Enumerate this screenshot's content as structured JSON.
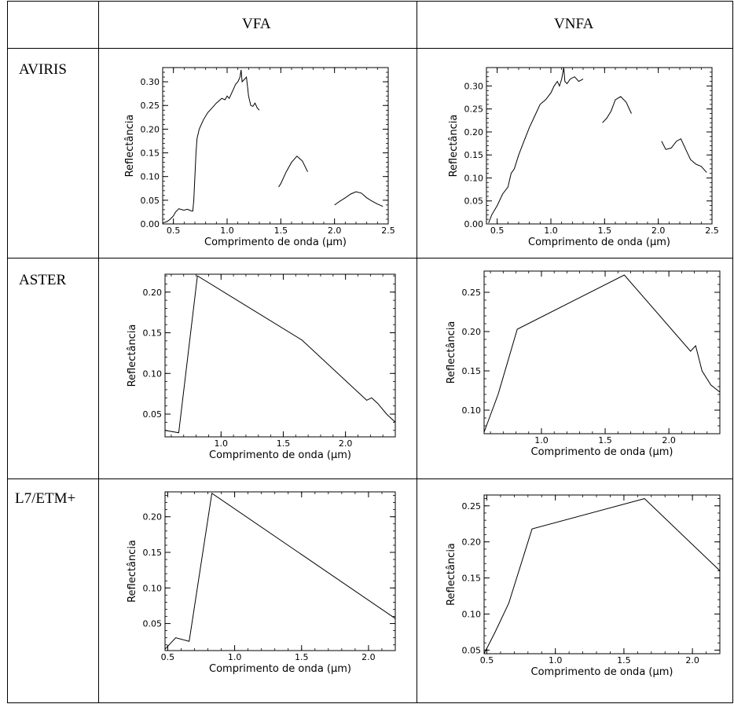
{
  "table": {
    "headers": [
      "",
      "VFA",
      "VNFA"
    ],
    "rows": [
      "AVIRIS",
      "ASTER",
      "L7/ETM+"
    ]
  },
  "chart_data": [
    {
      "id": "aviris-vfa",
      "type": "line",
      "row": "AVIRIS",
      "column": "VFA",
      "xlabel": "Comprimento de onda (µm)",
      "ylabel": "Reflectância",
      "xlim": [
        0.4,
        2.5
      ],
      "ylim": [
        0.0,
        0.33
      ],
      "xticks": [
        0.5,
        1.0,
        1.5,
        2.0,
        2.5
      ],
      "xtick_labels": [
        "0.5",
        "1.0",
        "1.5",
        "2.0",
        "2.5"
      ],
      "yticks": [
        0.0,
        0.05,
        0.1,
        0.15,
        0.2,
        0.25,
        0.3
      ],
      "ytick_labels": [
        "0.00",
        "0.05",
        "0.10",
        "0.15",
        "0.20",
        "0.25",
        "0.30"
      ],
      "segments": [
        [
          [
            0.4,
            0.002
          ],
          [
            0.44,
            0.005
          ],
          [
            0.47,
            0.01
          ],
          [
            0.5,
            0.017
          ],
          [
            0.52,
            0.025
          ],
          [
            0.55,
            0.032
          ],
          [
            0.58,
            0.03
          ],
          [
            0.6,
            0.029
          ],
          [
            0.63,
            0.031
          ],
          [
            0.66,
            0.028
          ],
          [
            0.68,
            0.027
          ],
          [
            0.69,
            0.05
          ],
          [
            0.7,
            0.1
          ],
          [
            0.71,
            0.15
          ],
          [
            0.72,
            0.18
          ],
          [
            0.74,
            0.2
          ],
          [
            0.78,
            0.22
          ],
          [
            0.82,
            0.235
          ],
          [
            0.86,
            0.245
          ],
          [
            0.9,
            0.255
          ],
          [
            0.95,
            0.265
          ],
          [
            0.98,
            0.262
          ],
          [
            1.0,
            0.27
          ],
          [
            1.02,
            0.265
          ],
          [
            1.05,
            0.28
          ],
          [
            1.08,
            0.295
          ],
          [
            1.1,
            0.3
          ],
          [
            1.12,
            0.31
          ],
          [
            1.13,
            0.325
          ],
          [
            1.14,
            0.3
          ],
          [
            1.16,
            0.305
          ],
          [
            1.18,
            0.31
          ],
          [
            1.2,
            0.27
          ],
          [
            1.22,
            0.25
          ],
          [
            1.24,
            0.248
          ],
          [
            1.26,
            0.255
          ],
          [
            1.28,
            0.245
          ],
          [
            1.3,
            0.24
          ]
        ],
        [
          [
            1.48,
            0.078
          ],
          [
            1.5,
            0.085
          ],
          [
            1.55,
            0.11
          ],
          [
            1.6,
            0.13
          ],
          [
            1.65,
            0.143
          ],
          [
            1.7,
            0.133
          ],
          [
            1.75,
            0.11
          ]
        ],
        [
          [
            2.0,
            0.04
          ],
          [
            2.05,
            0.048
          ],
          [
            2.1,
            0.055
          ],
          [
            2.15,
            0.063
          ],
          [
            2.2,
            0.068
          ],
          [
            2.25,
            0.065
          ],
          [
            2.3,
            0.055
          ],
          [
            2.35,
            0.048
          ],
          [
            2.4,
            0.042
          ],
          [
            2.45,
            0.037
          ]
        ]
      ]
    },
    {
      "id": "aviris-vnfa",
      "type": "line",
      "row": "AVIRIS",
      "column": "VNFA",
      "xlabel": "Comprimento de onda (µm)",
      "ylabel": "Reflectância",
      "xlim": [
        0.4,
        2.5
      ],
      "ylim": [
        0.0,
        0.34
      ],
      "xticks": [
        0.5,
        1.0,
        1.5,
        2.0,
        2.5
      ],
      "xtick_labels": [
        "0.5",
        "1.0",
        "1.5",
        "2.0",
        "2.5"
      ],
      "yticks": [
        0.0,
        0.05,
        0.1,
        0.15,
        0.2,
        0.25,
        0.3
      ],
      "ytick_labels": [
        "0.00",
        "0.05",
        "0.10",
        "0.15",
        "0.20",
        "0.25",
        "0.30"
      ],
      "segments": [
        [
          [
            0.42,
            0.002
          ],
          [
            0.45,
            0.02
          ],
          [
            0.5,
            0.04
          ],
          [
            0.55,
            0.065
          ],
          [
            0.6,
            0.08
          ],
          [
            0.63,
            0.11
          ],
          [
            0.66,
            0.12
          ],
          [
            0.7,
            0.15
          ],
          [
            0.75,
            0.18
          ],
          [
            0.8,
            0.21
          ],
          [
            0.85,
            0.235
          ],
          [
            0.9,
            0.26
          ],
          [
            0.95,
            0.27
          ],
          [
            1.0,
            0.285
          ],
          [
            1.03,
            0.3
          ],
          [
            1.06,
            0.31
          ],
          [
            1.08,
            0.3
          ],
          [
            1.1,
            0.315
          ],
          [
            1.12,
            0.34
          ],
          [
            1.13,
            0.31
          ],
          [
            1.15,
            0.305
          ],
          [
            1.18,
            0.315
          ],
          [
            1.22,
            0.32
          ],
          [
            1.26,
            0.31
          ],
          [
            1.3,
            0.315
          ]
        ],
        [
          [
            1.48,
            0.22
          ],
          [
            1.52,
            0.23
          ],
          [
            1.56,
            0.245
          ],
          [
            1.6,
            0.27
          ],
          [
            1.65,
            0.277
          ],
          [
            1.7,
            0.265
          ],
          [
            1.75,
            0.24
          ]
        ],
        [
          [
            2.03,
            0.18
          ],
          [
            2.07,
            0.162
          ],
          [
            2.12,
            0.165
          ],
          [
            2.17,
            0.18
          ],
          [
            2.21,
            0.185
          ],
          [
            2.25,
            0.165
          ],
          [
            2.3,
            0.14
          ],
          [
            2.35,
            0.13
          ],
          [
            2.4,
            0.125
          ],
          [
            2.45,
            0.112
          ]
        ]
      ]
    },
    {
      "id": "aster-vfa",
      "type": "line",
      "row": "ASTER",
      "column": "VFA",
      "xlabel": "Comprimento de onda (µm)",
      "ylabel": "Reflectância",
      "xlim": [
        0.55,
        2.4
      ],
      "ylim": [
        0.022,
        0.222
      ],
      "xticks": [
        1.0,
        1.5,
        2.0
      ],
      "xtick_labels": [
        "1.0",
        "1.5",
        "2.0"
      ],
      "yticks": [
        0.05,
        0.1,
        0.15,
        0.2
      ],
      "ytick_labels": [
        "0.05",
        "0.10",
        "0.15",
        "0.20"
      ],
      "segments": [
        [
          [
            0.55,
            0.03
          ],
          [
            0.66,
            0.027
          ],
          [
            0.81,
            0.22
          ],
          [
            1.65,
            0.141
          ],
          [
            2.17,
            0.067
          ],
          [
            2.21,
            0.07
          ],
          [
            2.26,
            0.063
          ],
          [
            2.33,
            0.05
          ],
          [
            2.4,
            0.04
          ]
        ]
      ]
    },
    {
      "id": "aster-vnfa",
      "type": "line",
      "row": "ASTER",
      "column": "VNFA",
      "xlabel": "Comprimento de onda (µm)",
      "ylabel": "Reflectância",
      "xlim": [
        0.55,
        2.4
      ],
      "ylim": [
        0.07,
        0.277
      ],
      "xticks": [
        1.0,
        1.5,
        2.0
      ],
      "xtick_labels": [
        "1.0",
        "1.5",
        "2.0"
      ],
      "yticks": [
        0.1,
        0.15,
        0.2,
        0.25
      ],
      "ytick_labels": [
        "0.10",
        "0.15",
        "0.20",
        "0.25"
      ],
      "segments": [
        [
          [
            0.55,
            0.072
          ],
          [
            0.66,
            0.12
          ],
          [
            0.81,
            0.203
          ],
          [
            1.65,
            0.272
          ],
          [
            2.17,
            0.175
          ],
          [
            2.21,
            0.182
          ],
          [
            2.26,
            0.15
          ],
          [
            2.33,
            0.132
          ],
          [
            2.4,
            0.123
          ]
        ]
      ]
    },
    {
      "id": "etm-vfa",
      "type": "line",
      "row": "L7/ETM+",
      "column": "VFA",
      "xlabel": "Comprimento de onda (µm)",
      "ylabel": "Reflectância",
      "xlim": [
        0.48,
        2.2
      ],
      "ylim": [
        0.012,
        0.235
      ],
      "xticks": [
        0.5,
        1.0,
        1.5,
        2.0
      ],
      "xtick_labels": [
        "0.5",
        "1.0",
        "1.5",
        "2.0"
      ],
      "yticks": [
        0.05,
        0.1,
        0.15,
        0.2
      ],
      "ytick_labels": [
        "0.05",
        "0.10",
        "0.15",
        "0.20"
      ],
      "segments": [
        [
          [
            0.48,
            0.014
          ],
          [
            0.56,
            0.03
          ],
          [
            0.66,
            0.025
          ],
          [
            0.83,
            0.233
          ],
          [
            2.2,
            0.057
          ]
        ]
      ]
    },
    {
      "id": "etm-vnfa",
      "type": "line",
      "row": "L7/ETM+",
      "column": "VNFA",
      "xlabel": "Comprimento de onda (µm)",
      "ylabel": "Reflectância",
      "xlim": [
        0.48,
        2.2
      ],
      "ylim": [
        0.045,
        0.265
      ],
      "xticks": [
        0.5,
        1.0,
        1.5,
        2.0
      ],
      "xtick_labels": [
        "0.5",
        "1.0",
        "1.5",
        "2.0"
      ],
      "yticks": [
        0.05,
        0.1,
        0.15,
        0.2,
        0.25
      ],
      "ytick_labels": [
        "0.05",
        "0.10",
        "0.15",
        "0.20",
        "0.25"
      ],
      "segments": [
        [
          [
            0.48,
            0.045
          ],
          [
            0.56,
            0.075
          ],
          [
            0.66,
            0.115
          ],
          [
            0.83,
            0.218
          ],
          [
            1.65,
            0.26
          ],
          [
            2.2,
            0.16
          ]
        ]
      ]
    }
  ]
}
